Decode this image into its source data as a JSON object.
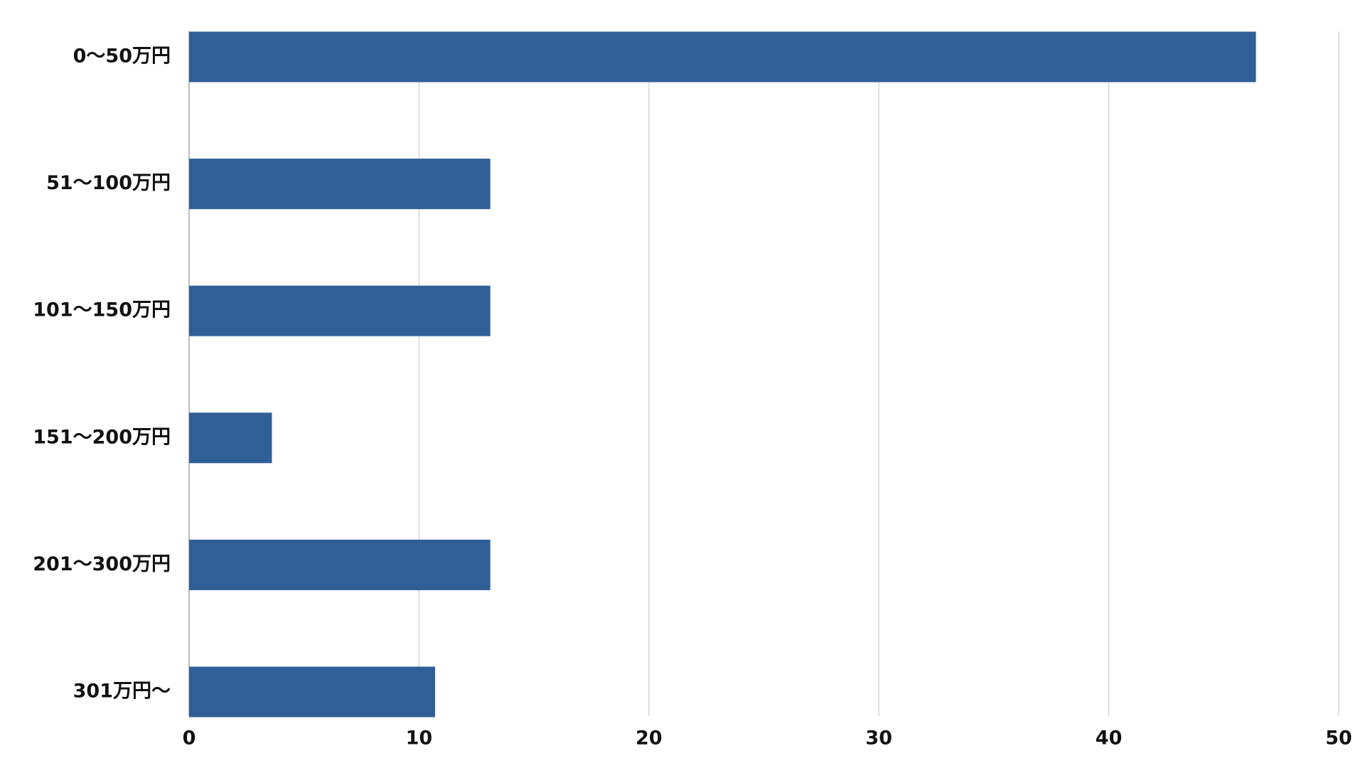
{
  "chart_data": {
    "type": "barh",
    "categories": [
      "0〜50万円",
      "51〜100万円",
      "101〜150万円",
      "151〜200万円",
      "201〜300万円",
      "301万円〜"
    ],
    "values": [
      46.4,
      13.1,
      13.1,
      3.6,
      13.1,
      10.7
    ],
    "color": "#2f5f96",
    "xlim": [
      0,
      50
    ],
    "xticks": [
      0,
      10,
      20,
      30,
      40,
      50
    ],
    "grid": true
  }
}
